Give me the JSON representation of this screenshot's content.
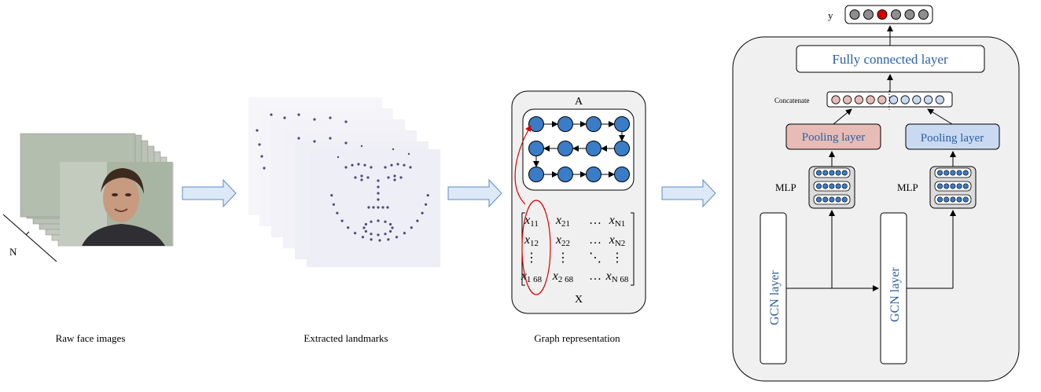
{
  "captions": {
    "raw": "Raw face images",
    "landmarks": "Extracted landmarks",
    "graph": "Graph representation"
  },
  "stack_label": "N",
  "graph_panel": {
    "adj_label": "A",
    "feat_label": "X",
    "matrix": [
      [
        "x",
        "11",
        "x",
        "21",
        "…",
        "x",
        "N1"
      ],
      [
        "x",
        "12",
        "x",
        "22",
        "…",
        "x",
        "N2"
      ],
      [
        "⋮",
        "",
        "⋮",
        "",
        "⋱",
        "⋮",
        ""
      ],
      [
        "x",
        "1 68",
        "x",
        "2 68",
        "…",
        "x",
        "N 68"
      ]
    ]
  },
  "network": {
    "output_label": "y",
    "fc_label": "Fully connected layer",
    "concat_label": "Concatenate",
    "pool_left_label": "Pooling layer",
    "pool_right_label": "Pooling layer",
    "mlp_left_label": "MLP",
    "mlp_right_label": "MLP",
    "gcn_left_label": "GCN layer",
    "gcn_right_label": "GCN layer"
  },
  "colors": {
    "node_blue": "#3a7cc7",
    "pool_red": "#e7bcb7",
    "pool_blue": "#c9d9f1",
    "panel_gray": "#f0f0f0",
    "arrow_fill": "#dde9f6",
    "arrow_stroke": "#5b8cc4",
    "highlight_red": "#d60000",
    "text_blue": "#2a5fa3"
  }
}
